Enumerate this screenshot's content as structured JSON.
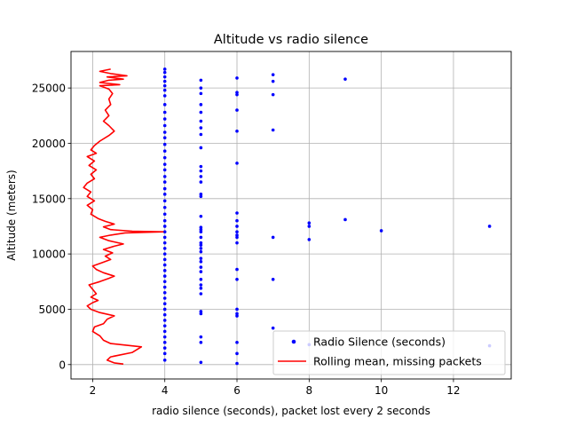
{
  "chart_data": {
    "type": "scatter",
    "title": "Altitude vs radio silence",
    "xlabel": "radio silence (seconds), packet lost every 2 seconds",
    "ylabel": "Altitude (meters)",
    "xlim": [
      1.4,
      13.6
    ],
    "ylim": [
      -1300,
      28300
    ],
    "xticks": [
      2,
      4,
      6,
      8,
      10,
      12
    ],
    "yticks": [
      0,
      5000,
      10000,
      15000,
      20000,
      25000
    ],
    "xtick_labels": [
      "2",
      "4",
      "6",
      "8",
      "10",
      "12"
    ],
    "ytick_labels": [
      "0",
      "5000",
      "10000",
      "15000",
      "20000",
      "25000"
    ],
    "grid": true,
    "legend_position": "lower-right",
    "series": [
      {
        "name": "Radio Silence (seconds)",
        "kind": "scatter",
        "color": "#0000ff",
        "points": [
          [
            4,
            26700
          ],
          [
            4,
            26400
          ],
          [
            4,
            26000
          ],
          [
            4,
            25600
          ],
          [
            4,
            25200
          ],
          [
            4,
            24800
          ],
          [
            4,
            24300
          ],
          [
            4,
            23500
          ],
          [
            4,
            22800
          ],
          [
            4,
            22200
          ],
          [
            4,
            21600
          ],
          [
            4,
            21000
          ],
          [
            4,
            20500
          ],
          [
            4,
            19900
          ],
          [
            4,
            19300
          ],
          [
            4,
            18700
          ],
          [
            4,
            18100
          ],
          [
            4,
            17600
          ],
          [
            4,
            17000
          ],
          [
            4,
            16500
          ],
          [
            4,
            15900
          ],
          [
            4,
            15400
          ],
          [
            4,
            14800
          ],
          [
            4,
            14200
          ],
          [
            4,
            13600
          ],
          [
            4,
            13000
          ],
          [
            4,
            12500
          ],
          [
            4,
            12000
          ],
          [
            4,
            11500
          ],
          [
            4,
            11000
          ],
          [
            4,
            10500
          ],
          [
            4,
            10000
          ],
          [
            4,
            9500
          ],
          [
            4,
            9000
          ],
          [
            4,
            8500
          ],
          [
            4,
            8000
          ],
          [
            4,
            7500
          ],
          [
            4,
            7000
          ],
          [
            4,
            6500
          ],
          [
            4,
            6000
          ],
          [
            4,
            5500
          ],
          [
            4,
            5000
          ],
          [
            4,
            4500
          ],
          [
            4,
            4000
          ],
          [
            4,
            3500
          ],
          [
            4,
            3000
          ],
          [
            4,
            2500
          ],
          [
            4,
            2000
          ],
          [
            4,
            1500
          ],
          [
            4,
            1000
          ],
          [
            4,
            400
          ],
          [
            5,
            25700
          ],
          [
            5,
            25000
          ],
          [
            5,
            24500
          ],
          [
            5,
            23500
          ],
          [
            5,
            22800
          ],
          [
            5,
            22000
          ],
          [
            5,
            21400
          ],
          [
            5,
            20800
          ],
          [
            5,
            19600
          ],
          [
            5,
            17900
          ],
          [
            5,
            17500
          ],
          [
            5,
            17000
          ],
          [
            5,
            16500
          ],
          [
            5,
            15400
          ],
          [
            5,
            15200
          ],
          [
            5,
            13400
          ],
          [
            5,
            12400
          ],
          [
            5,
            12200
          ],
          [
            5,
            12000
          ],
          [
            5,
            11500
          ],
          [
            5,
            11000
          ],
          [
            5,
            10800
          ],
          [
            5,
            10500
          ],
          [
            5,
            10200
          ],
          [
            5,
            9600
          ],
          [
            5,
            9300
          ],
          [
            5,
            8800
          ],
          [
            5,
            8400
          ],
          [
            5,
            7700
          ],
          [
            5,
            7200
          ],
          [
            5,
            6900
          ],
          [
            5,
            6400
          ],
          [
            5,
            4800
          ],
          [
            5,
            4600
          ],
          [
            5,
            2500
          ],
          [
            5,
            2000
          ],
          [
            5,
            200
          ],
          [
            6,
            25900
          ],
          [
            6,
            24600
          ],
          [
            6,
            24400
          ],
          [
            6,
            23000
          ],
          [
            6,
            21100
          ],
          [
            6,
            18200
          ],
          [
            6,
            13700
          ],
          [
            6,
            13000
          ],
          [
            6,
            12500
          ],
          [
            6,
            12000
          ],
          [
            6,
            11700
          ],
          [
            6,
            11500
          ],
          [
            6,
            11000
          ],
          [
            6,
            8600
          ],
          [
            6,
            7700
          ],
          [
            6,
            5000
          ],
          [
            6,
            4600
          ],
          [
            6,
            4400
          ],
          [
            6,
            2000
          ],
          [
            6,
            1000
          ],
          [
            6,
            100
          ],
          [
            7,
            26200
          ],
          [
            7,
            25600
          ],
          [
            7,
            24400
          ],
          [
            7,
            21200
          ],
          [
            7,
            11500
          ],
          [
            7,
            7700
          ],
          [
            7,
            3300
          ],
          [
            8,
            12800
          ],
          [
            8,
            12500
          ],
          [
            8,
            11300
          ],
          [
            8,
            1800
          ],
          [
            9,
            25800
          ],
          [
            9,
            13100
          ],
          [
            10,
            12100
          ],
          [
            13,
            12500
          ],
          [
            13,
            1700
          ]
        ]
      },
      {
        "name": "Rolling mean, missing packets",
        "kind": "line",
        "color": "#ff0000",
        "points": [
          [
            2.85,
            50
          ],
          [
            2.6,
            150
          ],
          [
            2.4,
            400
          ],
          [
            2.5,
            700
          ],
          [
            3.1,
            1100
          ],
          [
            3.35,
            1600
          ],
          [
            2.5,
            1900
          ],
          [
            2.3,
            2200
          ],
          [
            2.2,
            2600
          ],
          [
            2.0,
            3000
          ],
          [
            2.05,
            3400
          ],
          [
            2.3,
            3700
          ],
          [
            2.4,
            4100
          ],
          [
            2.6,
            4400
          ],
          [
            2.2,
            4700
          ],
          [
            1.95,
            5000
          ],
          [
            1.85,
            5300
          ],
          [
            2.0,
            5600
          ],
          [
            2.15,
            5800
          ],
          [
            1.95,
            6100
          ],
          [
            2.1,
            6400
          ],
          [
            2.0,
            6800
          ],
          [
            1.9,
            7200
          ],
          [
            2.2,
            7500
          ],
          [
            2.45,
            7800
          ],
          [
            2.6,
            8000
          ],
          [
            2.3,
            8300
          ],
          [
            2.1,
            8600
          ],
          [
            2.0,
            8900
          ],
          [
            2.25,
            9200
          ],
          [
            2.5,
            9500
          ],
          [
            2.35,
            9800
          ],
          [
            2.55,
            10100
          ],
          [
            2.3,
            10400
          ],
          [
            2.6,
            10700
          ],
          [
            2.85,
            10900
          ],
          [
            2.45,
            11200
          ],
          [
            2.2,
            11500
          ],
          [
            2.5,
            11700
          ],
          [
            2.9,
            11900
          ],
          [
            3.95,
            12000
          ],
          [
            3.1,
            12050
          ],
          [
            2.5,
            12200
          ],
          [
            2.3,
            12450
          ],
          [
            2.6,
            12700
          ],
          [
            2.35,
            12950
          ],
          [
            2.15,
            13200
          ],
          [
            1.95,
            13600
          ],
          [
            2.0,
            14000
          ],
          [
            1.85,
            14400
          ],
          [
            2.05,
            14800
          ],
          [
            1.85,
            15200
          ],
          [
            1.95,
            15600
          ],
          [
            1.75,
            16000
          ],
          [
            1.85,
            16400
          ],
          [
            2.05,
            16800
          ],
          [
            1.95,
            17200
          ],
          [
            2.1,
            17600
          ],
          [
            1.9,
            18000
          ],
          [
            2.05,
            18400
          ],
          [
            1.85,
            18800
          ],
          [
            2.1,
            19100
          ],
          [
            1.95,
            19400
          ],
          [
            2.05,
            19800
          ],
          [
            2.2,
            20200
          ],
          [
            2.45,
            20700
          ],
          [
            2.6,
            21100
          ],
          [
            2.45,
            21600
          ],
          [
            2.3,
            22000
          ],
          [
            2.45,
            22500
          ],
          [
            2.35,
            23000
          ],
          [
            2.5,
            23500
          ],
          [
            2.45,
            24000
          ],
          [
            2.55,
            24500
          ],
          [
            2.45,
            24900
          ],
          [
            2.2,
            25200
          ],
          [
            2.75,
            25300
          ],
          [
            2.2,
            25500
          ],
          [
            2.45,
            25700
          ],
          [
            2.85,
            25800
          ],
          [
            2.4,
            26000
          ],
          [
            2.95,
            26100
          ],
          [
            2.5,
            26300
          ],
          [
            2.2,
            26500
          ],
          [
            2.5,
            26700
          ]
        ]
      }
    ]
  }
}
